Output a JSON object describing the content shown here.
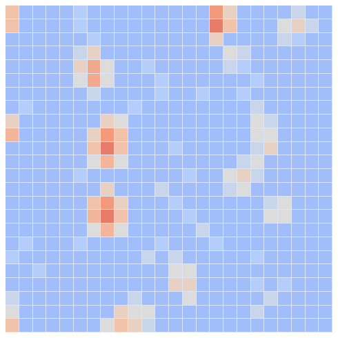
{
  "chart_data": {
    "type": "heatmap",
    "tick_labels": false,
    "grid": false,
    "color_range": [
      0,
      1
    ],
    "cells": [
      [
        0.6,
        0.35,
        0.35,
        0.35,
        0.35,
        0.4,
        0.35,
        0.35,
        0.35,
        0.35,
        0.35,
        0.35,
        0.35,
        0.35,
        0.35,
        0.75,
        0.55,
        0.35,
        0.35,
        0.35,
        0.35,
        0.45,
        0.35,
        0.35
      ],
      [
        0.6,
        0.35,
        0.35,
        0.35,
        0.35,
        0.4,
        0.35,
        0.35,
        0.35,
        0.35,
        0.35,
        0.35,
        0.35,
        0.35,
        0.35,
        0.8,
        0.6,
        0.35,
        0.35,
        0.35,
        0.5,
        0.55,
        0.45,
        0.35
      ],
      [
        0.35,
        0.35,
        0.35,
        0.35,
        0.35,
        0.35,
        0.4,
        0.35,
        0.35,
        0.35,
        0.35,
        0.35,
        0.35,
        0.35,
        0.35,
        0.55,
        0.35,
        0.35,
        0.35,
        0.35,
        0.45,
        0.4,
        0.35,
        0.35
      ],
      [
        0.35,
        0.35,
        0.35,
        0.35,
        0.35,
        0.45,
        0.55,
        0.35,
        0.35,
        0.35,
        0.35,
        0.35,
        0.35,
        0.35,
        0.35,
        0.35,
        0.5,
        0.45,
        0.35,
        0.35,
        0.35,
        0.35,
        0.35,
        0.35
      ],
      [
        0.35,
        0.35,
        0.35,
        0.35,
        0.35,
        0.55,
        0.7,
        0.5,
        0.35,
        0.35,
        0.4,
        0.35,
        0.35,
        0.35,
        0.35,
        0.35,
        0.45,
        0.4,
        0.35,
        0.35,
        0.35,
        0.35,
        0.35,
        0.35
      ],
      [
        0.35,
        0.35,
        0.35,
        0.35,
        0.35,
        0.5,
        0.7,
        0.5,
        0.35,
        0.35,
        0.35,
        0.4,
        0.35,
        0.35,
        0.35,
        0.35,
        0.35,
        0.35,
        0.4,
        0.35,
        0.35,
        0.35,
        0.35,
        0.35
      ],
      [
        0.35,
        0.35,
        0.35,
        0.35,
        0.35,
        0.35,
        0.45,
        0.35,
        0.35,
        0.35,
        0.35,
        0.4,
        0.35,
        0.35,
        0.4,
        0.35,
        0.35,
        0.4,
        0.35,
        0.35,
        0.35,
        0.35,
        0.35,
        0.35
      ],
      [
        0.35,
        0.4,
        0.35,
        0.35,
        0.35,
        0.35,
        0.35,
        0.35,
        0.35,
        0.4,
        0.35,
        0.35,
        0.35,
        0.35,
        0.35,
        0.35,
        0.35,
        0.35,
        0.45,
        0.35,
        0.35,
        0.35,
        0.35,
        0.35
      ],
      [
        0.55,
        0.35,
        0.35,
        0.35,
        0.35,
        0.35,
        0.35,
        0.55,
        0.5,
        0.35,
        0.35,
        0.35,
        0.35,
        0.35,
        0.35,
        0.35,
        0.35,
        0.35,
        0.5,
        0.45,
        0.35,
        0.35,
        0.35,
        0.35
      ],
      [
        0.65,
        0.35,
        0.35,
        0.35,
        0.35,
        0.35,
        0.55,
        0.75,
        0.6,
        0.35,
        0.35,
        0.35,
        0.35,
        0.35,
        0.35,
        0.35,
        0.35,
        0.35,
        0.5,
        0.5,
        0.35,
        0.35,
        0.35,
        0.35
      ],
      [
        0.35,
        0.35,
        0.35,
        0.35,
        0.35,
        0.35,
        0.6,
        0.8,
        0.6,
        0.35,
        0.35,
        0.35,
        0.4,
        0.35,
        0.35,
        0.35,
        0.35,
        0.35,
        0.45,
        0.55,
        0.35,
        0.35,
        0.35,
        0.35
      ],
      [
        0.35,
        0.35,
        0.35,
        0.35,
        0.35,
        0.35,
        0.5,
        0.65,
        0.5,
        0.35,
        0.35,
        0.35,
        0.35,
        0.35,
        0.35,
        0.35,
        0.35,
        0.45,
        0.5,
        0.35,
        0.35,
        0.35,
        0.35,
        0.35
      ],
      [
        0.35,
        0.35,
        0.35,
        0.35,
        0.35,
        0.4,
        0.35,
        0.35,
        0.35,
        0.35,
        0.35,
        0.35,
        0.35,
        0.4,
        0.35,
        0.35,
        0.5,
        0.55,
        0.45,
        0.35,
        0.35,
        0.35,
        0.35,
        0.35
      ],
      [
        0.35,
        0.35,
        0.35,
        0.35,
        0.35,
        0.35,
        0.35,
        0.55,
        0.35,
        0.35,
        0.35,
        0.45,
        0.35,
        0.35,
        0.35,
        0.35,
        0.45,
        0.5,
        0.35,
        0.35,
        0.35,
        0.35,
        0.35,
        0.35
      ],
      [
        0.35,
        0.35,
        0.35,
        0.35,
        0.35,
        0.35,
        0.6,
        0.75,
        0.55,
        0.35,
        0.35,
        0.35,
        0.4,
        0.35,
        0.35,
        0.35,
        0.35,
        0.35,
        0.35,
        0.45,
        0.5,
        0.35,
        0.35,
        0.35
      ],
      [
        0.35,
        0.35,
        0.35,
        0.35,
        0.35,
        0.35,
        0.65,
        0.8,
        0.6,
        0.35,
        0.35,
        0.35,
        0.35,
        0.4,
        0.35,
        0.35,
        0.35,
        0.35,
        0.35,
        0.5,
        0.5,
        0.35,
        0.35,
        0.35
      ],
      [
        0.35,
        0.35,
        0.35,
        0.35,
        0.35,
        0.35,
        0.5,
        0.65,
        0.5,
        0.35,
        0.35,
        0.35,
        0.35,
        0.35,
        0.45,
        0.35,
        0.35,
        0.35,
        0.35,
        0.35,
        0.35,
        0.35,
        0.35,
        0.35
      ],
      [
        0.35,
        0.4,
        0.35,
        0.35,
        0.35,
        0.4,
        0.35,
        0.35,
        0.35,
        0.35,
        0.35,
        0.4,
        0.35,
        0.35,
        0.35,
        0.4,
        0.35,
        0.35,
        0.35,
        0.35,
        0.35,
        0.35,
        0.35,
        0.35
      ],
      [
        0.4,
        0.35,
        0.35,
        0.35,
        0.35,
        0.35,
        0.35,
        0.35,
        0.35,
        0.35,
        0.45,
        0.35,
        0.45,
        0.35,
        0.35,
        0.35,
        0.35,
        0.35,
        0.4,
        0.35,
        0.35,
        0.35,
        0.35,
        0.35
      ],
      [
        0.35,
        0.35,
        0.4,
        0.35,
        0.35,
        0.35,
        0.35,
        0.35,
        0.35,
        0.35,
        0.35,
        0.35,
        0.5,
        0.5,
        0.35,
        0.35,
        0.35,
        0.35,
        0.35,
        0.35,
        0.35,
        0.35,
        0.35,
        0.35
      ],
      [
        0.35,
        0.35,
        0.35,
        0.35,
        0.35,
        0.35,
        0.35,
        0.35,
        0.35,
        0.35,
        0.35,
        0.35,
        0.55,
        0.55,
        0.35,
        0.35,
        0.35,
        0.35,
        0.4,
        0.35,
        0.4,
        0.35,
        0.35,
        0.35
      ],
      [
        0.45,
        0.35,
        0.35,
        0.35,
        0.35,
        0.35,
        0.35,
        0.35,
        0.35,
        0.45,
        0.35,
        0.35,
        0.35,
        0.5,
        0.35,
        0.35,
        0.35,
        0.35,
        0.35,
        0.45,
        0.35,
        0.35,
        0.35,
        0.35
      ],
      [
        0.5,
        0.35,
        0.35,
        0.35,
        0.35,
        0.35,
        0.35,
        0.35,
        0.55,
        0.5,
        0.5,
        0.35,
        0.35,
        0.35,
        0.35,
        0.35,
        0.35,
        0.35,
        0.45,
        0.35,
        0.35,
        0.35,
        0.35,
        0.35
      ],
      [
        0.6,
        0.35,
        0.35,
        0.35,
        0.35,
        0.35,
        0.35,
        0.5,
        0.6,
        0.55,
        0.45,
        0.35,
        0.35,
        0.35,
        0.35,
        0.35,
        0.35,
        0.35,
        0.35,
        0.35,
        0.35,
        0.35,
        0.35,
        0.35
      ]
    ]
  }
}
